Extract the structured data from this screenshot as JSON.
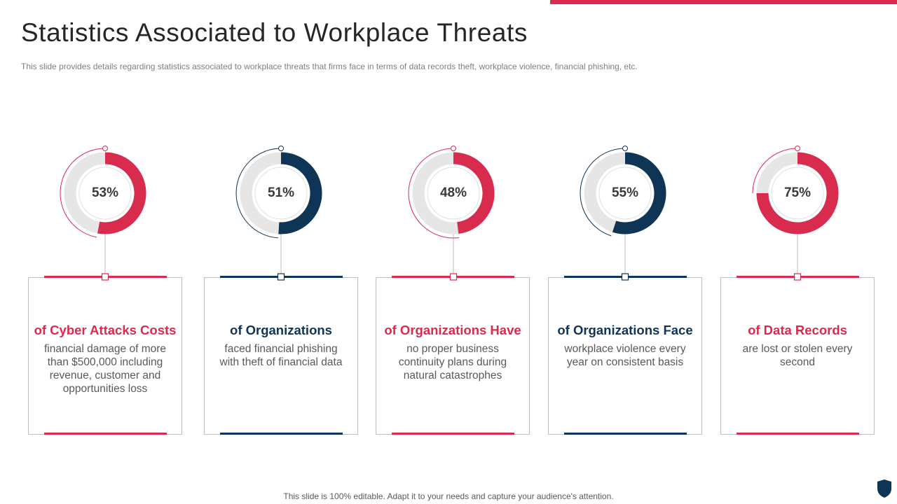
{
  "header": {
    "title": "Statistics Associated to Workplace Threats",
    "subtitle": "This slide provides  details regarding  statistics associated to workplace threats that firms face in terms of data records theft, workplace violence, financial phishing, etc."
  },
  "colors": {
    "red": "#d92b4e",
    "navy": "#0f3556",
    "track": "#e6e6e6"
  },
  "chart_data": {
    "type": "pie",
    "title": "Statistics Associated to Workplace Threats",
    "categories": [
      "of Cyber Attacks Costs",
      "of Organizations",
      "of Organizations Have",
      "of Organizations Face",
      "of Data Records"
    ],
    "values": [
      53,
      51,
      48,
      55,
      75
    ],
    "unit": "%"
  },
  "stats": [
    {
      "percent_label": "53%",
      "heading": "of Cyber Attacks Costs",
      "body": "financial damage of more than $500,000 including revenue, customer and opportunities loss",
      "color": "red"
    },
    {
      "percent_label": "51%",
      "heading": "of Organizations",
      "body": "faced financial phishing with theft of financial data",
      "color": "navy"
    },
    {
      "percent_label": "48%",
      "heading": "of Organizations Have",
      "body": "no proper business continuity plans during natural catastrophes",
      "color": "red"
    },
    {
      "percent_label": "55%",
      "heading": "of Organizations Face",
      "body": "workplace violence every year on consistent basis",
      "color": "navy"
    },
    {
      "percent_label": "75%",
      "heading": "of Data Records",
      "body": "are lost or stolen every second",
      "color": "red"
    }
  ],
  "footer": {
    "text": "This slide is 100% editable. Adapt it to your needs and capture your audience's attention."
  },
  "icons": {
    "logo": "shield-icon"
  }
}
